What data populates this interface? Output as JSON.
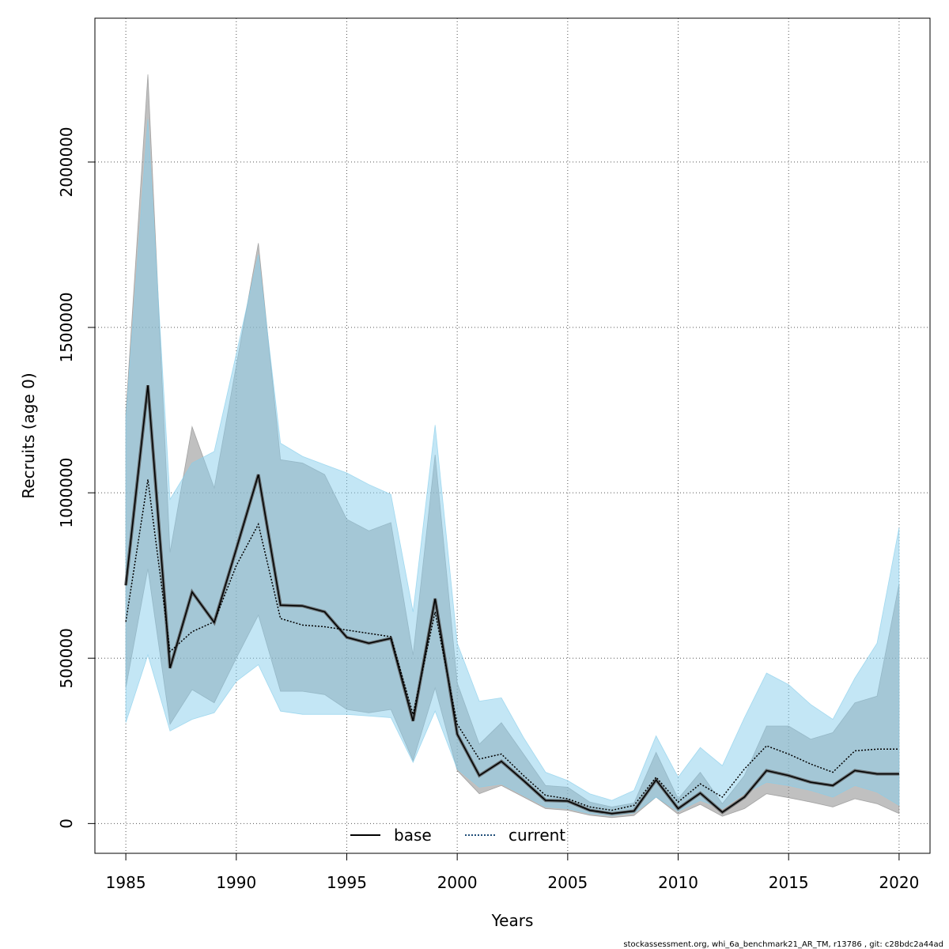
{
  "chart_data": {
    "type": "area",
    "xlabel": "Years",
    "ylabel": "Recruits (age 0)",
    "xlim": [
      1983.6,
      2021.4
    ],
    "ylim": [
      -90000,
      2435000
    ],
    "x_ticks": [
      1985,
      1990,
      1995,
      2000,
      2005,
      2010,
      2015,
      2020
    ],
    "y_ticks": [
      0,
      500000,
      1000000,
      1500000,
      2000000
    ],
    "x_tick_labels": [
      "1985",
      "1990",
      "1995",
      "2000",
      "2005",
      "2010",
      "2015",
      "2020"
    ],
    "y_tick_labels": [
      "0",
      "500000",
      "1000000",
      "1500000",
      "2000000"
    ],
    "grid": true,
    "legend_position": "bottom-center",
    "x": [
      1985,
      1986,
      1987,
      1988,
      1989,
      1990,
      1991,
      1992,
      1993,
      1994,
      1995,
      1996,
      1997,
      1998,
      1999,
      2000,
      2001,
      2002,
      2003,
      2004,
      2005,
      2006,
      2007,
      2008,
      2009,
      2010,
      2011,
      2012,
      2013,
      2014,
      2015,
      2016,
      2017,
      2018,
      2019,
      2020
    ],
    "series": [
      {
        "name": "base",
        "line_style": "solid",
        "line_color": "#000000",
        "band_color": "#8c8c8c",
        "values": [
          720000,
          1325000,
          470000,
          700000,
          608000,
          830000,
          1055000,
          660000,
          658000,
          640000,
          563000,
          545000,
          560000,
          310000,
          680000,
          270000,
          145000,
          188000,
          130000,
          70000,
          68000,
          40000,
          30000,
          38000,
          132000,
          45000,
          92000,
          34000,
          80000,
          160000,
          145000,
          125000,
          115000,
          160000,
          150000,
          150000
        ],
        "lower": [
          410000,
          770000,
          300000,
          405000,
          365000,
          500000,
          630000,
          400000,
          400000,
          390000,
          345000,
          335000,
          345000,
          190000,
          410000,
          160000,
          90000,
          115000,
          80000,
          45000,
          40000,
          25000,
          18000,
          24000,
          80000,
          28000,
          58000,
          22000,
          45000,
          90000,
          78000,
          65000,
          50000,
          75000,
          60000,
          30000
        ],
        "upper": [
          1240000,
          2265000,
          820000,
          1200000,
          1015000,
          1385000,
          1755000,
          1100000,
          1090000,
          1055000,
          920000,
          885000,
          910000,
          510000,
          1115000,
          425000,
          240000,
          305000,
          210000,
          115000,
          110000,
          65000,
          50000,
          62000,
          215000,
          75000,
          155000,
          60000,
          145000,
          295000,
          295000,
          255000,
          275000,
          365000,
          385000,
          725000
        ]
      },
      {
        "name": "current",
        "line_style": "dotted",
        "line_color": "#000000",
        "band_color": "#87ceeb",
        "values": [
          610000,
          1040000,
          520000,
          580000,
          610000,
          780000,
          905000,
          620000,
          600000,
          595000,
          585000,
          575000,
          565000,
          330000,
          640000,
          300000,
          195000,
          210000,
          145000,
          85000,
          75000,
          50000,
          40000,
          55000,
          140000,
          65000,
          120000,
          80000,
          165000,
          235000,
          210000,
          180000,
          155000,
          220000,
          225000,
          225000
        ],
        "lower": [
          305000,
          510000,
          280000,
          315000,
          335000,
          430000,
          480000,
          340000,
          330000,
          330000,
          330000,
          325000,
          320000,
          185000,
          340000,
          165000,
          110000,
          120000,
          85000,
          50000,
          45000,
          30000,
          24000,
          32000,
          80000,
          37000,
          70000,
          45000,
          90000,
          125000,
          115000,
          100000,
          80000,
          115000,
          95000,
          55000
        ],
        "upper": [
          1225000,
          2130000,
          980000,
          1090000,
          1125000,
          1420000,
          1720000,
          1150000,
          1110000,
          1085000,
          1060000,
          1025000,
          995000,
          640000,
          1205000,
          545000,
          370000,
          380000,
          260000,
          155000,
          130000,
          90000,
          70000,
          100000,
          265000,
          140000,
          230000,
          175000,
          320000,
          455000,
          420000,
          360000,
          315000,
          440000,
          545000,
          895000
        ]
      }
    ]
  },
  "footer": "stockassessment.org, whi_6a_benchmark21_AR_TM, r13786 , git: c28bdc2a44ad"
}
